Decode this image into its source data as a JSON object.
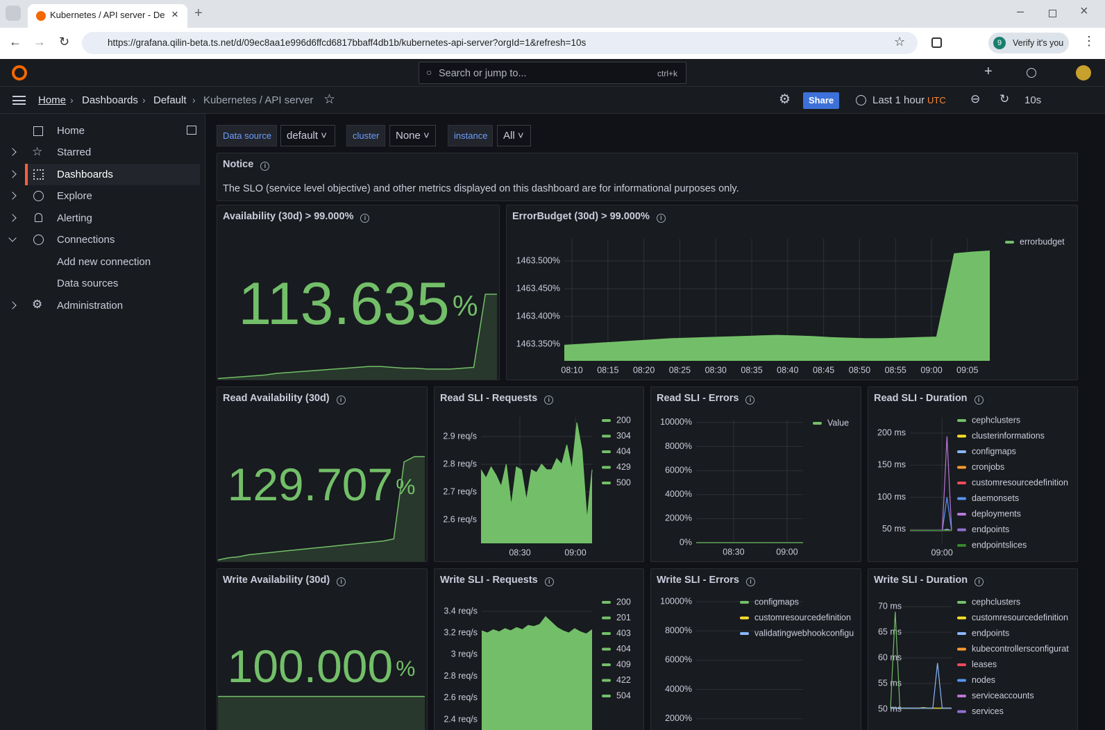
{
  "browser": {
    "tab_title": "Kubernetes / API server - Defau",
    "url": "https://grafana.qilin-beta.ts.net/d/09ec8aa1e996d6ffcd6817bbaff4db1b/kubernetes-api-server?orgId=1&refresh=10s",
    "profile": "9",
    "verify": "Verify it's you"
  },
  "topbar": {
    "search": "Search or jump to...",
    "shortcut": "ctrl+k"
  },
  "breadcrumb": [
    "Home",
    "Dashboards",
    "Default",
    "Kubernetes / API server"
  ],
  "toolbar": {
    "share": "Share",
    "time": "Last 1 hour",
    "timezone": "UTC",
    "refresh": "10s"
  },
  "nav": [
    "Home",
    "Starred",
    "Dashboards",
    "Explore",
    "Alerting",
    "Connections",
    "Add new connection",
    "Data sources",
    "Administration"
  ],
  "variables": [
    {
      "label": "Data source",
      "value": "default"
    },
    {
      "label": "cluster",
      "value": "None"
    },
    {
      "label": "instance",
      "value": "All"
    }
  ],
  "notice": {
    "title": "Notice",
    "text": "The SLO (service level objective) and other metrics displayed on this dashboard are for informational purposes only."
  },
  "panels": [
    {
      "type": "stat",
      "title": "Availability (30d) > 99.000%",
      "value": "113.635",
      "unit": "%",
      "ylim": [
        0,
        100
      ],
      "values": [
        2,
        3,
        4,
        5,
        6,
        8,
        9,
        10,
        11,
        12,
        13,
        14,
        15,
        16,
        16,
        15,
        14,
        14,
        13,
        13,
        13,
        14,
        15,
        100,
        100
      ]
    },
    {
      "type": "timeseries",
      "title": "ErrorBudget (30d) > 99.000%",
      "fill": true,
      "ylim": [
        1463.32,
        1463.54
      ],
      "yticks": [
        {
          "value": 1463.5,
          "label": "1463.500%"
        },
        {
          "value": 1463.45,
          "label": "1463.450%"
        },
        {
          "value": 1463.4,
          "label": "1463.400%"
        },
        {
          "value": 1463.35,
          "label": "1463.350%"
        }
      ],
      "xticks": [
        "08:10",
        "08:15",
        "08:20",
        "08:25",
        "08:30",
        "08:35",
        "08:40",
        "08:45",
        "08:50",
        "08:55",
        "09:00",
        "09:05"
      ],
      "series": [
        {
          "name": "errorbudget",
          "color": "#73bf69",
          "values": [
            1463.348,
            1463.35,
            1463.352,
            1463.354,
            1463.356,
            1463.358,
            1463.36,
            1463.361,
            1463.362,
            1463.363,
            1463.364,
            1463.365,
            1463.366,
            1463.365,
            1463.364,
            1463.362,
            1463.361,
            1463.36,
            1463.36,
            1463.361,
            1463.362,
            1463.363,
            1463.513,
            1463.516,
            1463.518
          ]
        }
      ]
    },
    {
      "type": "stat",
      "title": "Read Availability (30d)",
      "value": "129.707",
      "unit": "%",
      "ylim": [
        0,
        100
      ],
      "values": [
        2,
        4,
        5,
        7,
        8,
        9,
        10,
        11,
        12,
        13,
        14,
        15,
        16,
        17,
        18,
        19,
        20,
        22,
        95,
        100,
        100
      ]
    },
    {
      "type": "timeseries",
      "title": "Read SLI - Requests",
      "fill": true,
      "ylim": [
        2.515,
        2.97
      ],
      "yticks": [
        {
          "value": 2.9,
          "label": "2.9 req/s"
        },
        {
          "value": 2.8,
          "label": "2.8 req/s"
        },
        {
          "value": 2.7,
          "label": "2.7 req/s"
        },
        {
          "value": 2.6,
          "label": "2.6 req/s"
        }
      ],
      "xticks": [
        "08:30",
        "09:00"
      ],
      "series": [
        {
          "name": "200",
          "color": "#73bf69",
          "values": [
            2.78,
            2.75,
            2.79,
            2.76,
            2.72,
            2.8,
            2.65,
            2.79,
            2.78,
            2.67,
            2.78,
            2.77,
            2.8,
            2.78,
            2.78,
            2.82,
            2.8,
            2.87,
            2.78,
            2.95,
            2.85,
            2.6,
            2.78
          ]
        },
        {
          "name": "304",
          "color": "#73bf69"
        },
        {
          "name": "404",
          "color": "#73bf69"
        },
        {
          "name": "429",
          "color": "#73bf69"
        },
        {
          "name": "500",
          "color": "#73bf69"
        }
      ]
    },
    {
      "type": "timeseries",
      "title": "Read SLI - Errors",
      "ylim": [
        0,
        10226
      ],
      "yticks": [
        {
          "value": 10000,
          "label": "10000%"
        },
        {
          "value": 8000,
          "label": "8000%"
        },
        {
          "value": 6000,
          "label": "6000%"
        },
        {
          "value": 4000,
          "label": "4000%"
        },
        {
          "value": 2000,
          "label": "2000%"
        },
        {
          "value": 0,
          "label": "0%"
        }
      ],
      "xticks": [
        "08:30",
        "09:00"
      ],
      "series": [
        {
          "name": "Value",
          "color": "#73bf69",
          "values": [
            0,
            0,
            0,
            0,
            0,
            0,
            0,
            0
          ]
        }
      ]
    },
    {
      "type": "timeseries",
      "title": "Read SLI - Duration",
      "ylim": [
        28,
        225
      ],
      "yticks": [
        {
          "value": 200,
          "label": "200 ms"
        },
        {
          "value": 150,
          "label": "150 ms"
        },
        {
          "value": 100,
          "label": "100 ms"
        },
        {
          "value": 50,
          "label": "50 ms"
        }
      ],
      "xticks": [
        "09:00"
      ],
      "series": [
        {
          "name": "cephclusters",
          "color": "#73bf69",
          "values": [
            48,
            48,
            48,
            48,
            48,
            48,
            48,
            48,
            49,
            48
          ]
        },
        {
          "name": "clusterinformations",
          "color": "#fade2a",
          "values": [
            48,
            48,
            48,
            48,
            48,
            48,
            48,
            48,
            48,
            48
          ]
        },
        {
          "name": "configmaps",
          "color": "#8ab8ff",
          "values": [
            48,
            48,
            48,
            48,
            48,
            48,
            48,
            48,
            50,
            48
          ]
        },
        {
          "name": "cronjobs",
          "color": "#ff9830",
          "values": [
            48,
            48,
            48,
            48,
            48,
            48,
            48,
            48,
            48,
            48
          ]
        },
        {
          "name": "customresourcedefinition",
          "color": "#f2495c",
          "values": [
            48,
            48,
            48,
            48,
            48,
            48,
            48,
            48,
            48,
            48
          ]
        },
        {
          "name": "daemonsets",
          "color": "#5794f2",
          "values": [
            48,
            48,
            48,
            48,
            48,
            48,
            48,
            48,
            100,
            48
          ]
        },
        {
          "name": "deployments",
          "color": "#b877d9",
          "values": [
            48,
            48,
            48,
            48,
            48,
            48,
            48,
            48,
            195,
            48
          ]
        },
        {
          "name": "endpoints",
          "color": "#8f6fcf",
          "values": [
            48,
            48,
            48,
            48,
            48,
            48,
            48,
            48,
            48,
            48
          ]
        },
        {
          "name": "endpointslices",
          "color": "#37872d",
          "values": [
            48,
            48,
            48,
            48,
            48,
            48,
            48,
            48,
            48,
            48
          ]
        }
      ]
    },
    {
      "type": "stat",
      "title": "Write Availability (30d)",
      "value": "100.000",
      "unit": "%",
      "ylim": [
        0,
        100
      ],
      "values": [
        45,
        45,
        45,
        45,
        45,
        45,
        45,
        45,
        45,
        45
      ]
    },
    {
      "type": "timeseries",
      "title": "Write SLI - Requests",
      "fill": true,
      "ylim": [
        2.17,
        3.515
      ],
      "yticks": [
        {
          "value": 3.4,
          "label": "3.4 req/s"
        },
        {
          "value": 3.2,
          "label": "3.2 req/s"
        },
        {
          "value": 3,
          "label": "3 req/s"
        },
        {
          "value": 2.8,
          "label": "2.8 req/s"
        },
        {
          "value": 2.6,
          "label": "2.6 req/s"
        },
        {
          "value": 2.4,
          "label": "2.4 req/s"
        }
      ],
      "series": [
        {
          "name": "200",
          "color": "#73bf69",
          "values": [
            3.22,
            3.2,
            3.23,
            3.21,
            3.24,
            3.22,
            3.25,
            3.23,
            3.27,
            3.26,
            3.28,
            3.35,
            3.3,
            3.25,
            3.22,
            3.2,
            3.24,
            3.21,
            3.19,
            3.23
          ]
        },
        {
          "name": "201",
          "color": "#73bf69"
        },
        {
          "name": "403",
          "color": "#73bf69"
        },
        {
          "name": "404",
          "color": "#73bf69"
        },
        {
          "name": "409",
          "color": "#73bf69"
        },
        {
          "name": "422",
          "color": "#73bf69"
        },
        {
          "name": "504",
          "color": "#73bf69"
        }
      ]
    },
    {
      "type": "timeseries",
      "title": "Write SLI - Errors",
      "ylim": [
        0,
        10190
      ],
      "yticks": [
        {
          "value": 10000,
          "label": "10000%"
        },
        {
          "value": 8000,
          "label": "8000%"
        },
        {
          "value": 6000,
          "label": "6000%"
        },
        {
          "value": 4000,
          "label": "4000%"
        },
        {
          "value": 2000,
          "label": "2000%"
        }
      ],
      "series": [
        {
          "name": "configmaps",
          "color": "#73bf69"
        },
        {
          "name": "customresourcedefinition",
          "color": "#fade2a"
        },
        {
          "name": "validatingwebhookconfigu",
          "color": "#8ab8ff"
        }
      ]
    },
    {
      "type": "timeseries",
      "title": "Write SLI - Duration",
      "ylim": [
        43.1,
        71.5
      ],
      "yticks": [
        {
          "value": 70,
          "label": "70 ms"
        },
        {
          "value": 65,
          "label": "65 ms"
        },
        {
          "value": 60,
          "label": "60 ms"
        },
        {
          "value": 55,
          "label": "55 ms"
        },
        {
          "value": 50,
          "label": "50 ms"
        }
      ],
      "series": [
        {
          "name": "cephclusters",
          "color": "#73bf69",
          "values": [
            50.2,
            69,
            50.2,
            50.2,
            50.2,
            50.2,
            50.2,
            50.2,
            50.2,
            50.2,
            50.2,
            50.2,
            50.2,
            50.2
          ]
        },
        {
          "name": "customresourcedefinition",
          "color": "#fade2a",
          "values": [
            50.2,
            50.2,
            50.2,
            50.2,
            50.2,
            50.2,
            50.2,
            50.3,
            50.2,
            50.2,
            50.2,
            50.2,
            50.2,
            50.2
          ]
        },
        {
          "name": "endpoints",
          "color": "#8ab8ff",
          "values": [
            50.2,
            50.2,
            50.2,
            50.2,
            50.2,
            50.2,
            50.2,
            50.2,
            50.2,
            50.2,
            59,
            50.2,
            50.2,
            50.2
          ]
        },
        {
          "name": "kubecontrollersconfigurat",
          "color": "#ff9830"
        },
        {
          "name": "leases",
          "color": "#f2495c"
        },
        {
          "name": "nodes",
          "color": "#5794f2"
        },
        {
          "name": "serviceaccounts",
          "color": "#b877d9"
        },
        {
          "name": "services",
          "color": "#8f6fcf"
        }
      ]
    }
  ]
}
